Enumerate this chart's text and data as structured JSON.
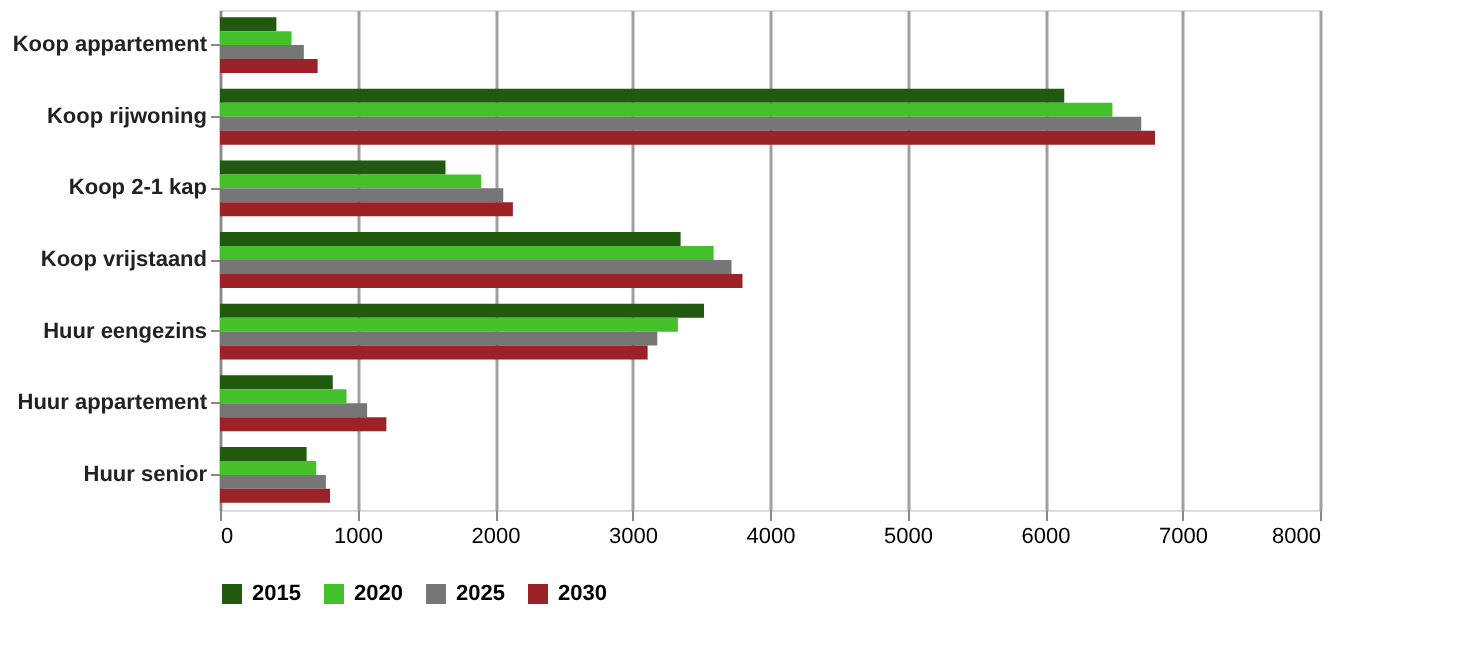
{
  "chart_data": {
    "type": "bar",
    "orientation": "horizontal",
    "categories": [
      "Koop appartement",
      "Koop rijwoning",
      "Koop 2-1 kap",
      "Koop vrijstaand",
      "Huur eengezins",
      "Huur appartement",
      "Huur senior"
    ],
    "series": [
      {
        "name": "2015",
        "color": "#1f5a0f",
        "values": [
          410,
          6140,
          1640,
          3350,
          3520,
          820,
          630
        ]
      },
      {
        "name": "2020",
        "color": "#44c02a",
        "values": [
          520,
          6490,
          1900,
          3590,
          3330,
          920,
          700
        ]
      },
      {
        "name": "2025",
        "color": "#767676",
        "values": [
          610,
          6700,
          2060,
          3720,
          3180,
          1070,
          770
        ]
      },
      {
        "name": "2030",
        "color": "#9b2226",
        "values": [
          710,
          6800,
          2130,
          3800,
          3110,
          1210,
          800
        ]
      }
    ],
    "xlim": [
      0,
      8000
    ],
    "xticks": [
      0,
      1000,
      2000,
      3000,
      4000,
      5000,
      6000,
      7000,
      8000
    ],
    "grid": "x",
    "legend": "bottom"
  }
}
